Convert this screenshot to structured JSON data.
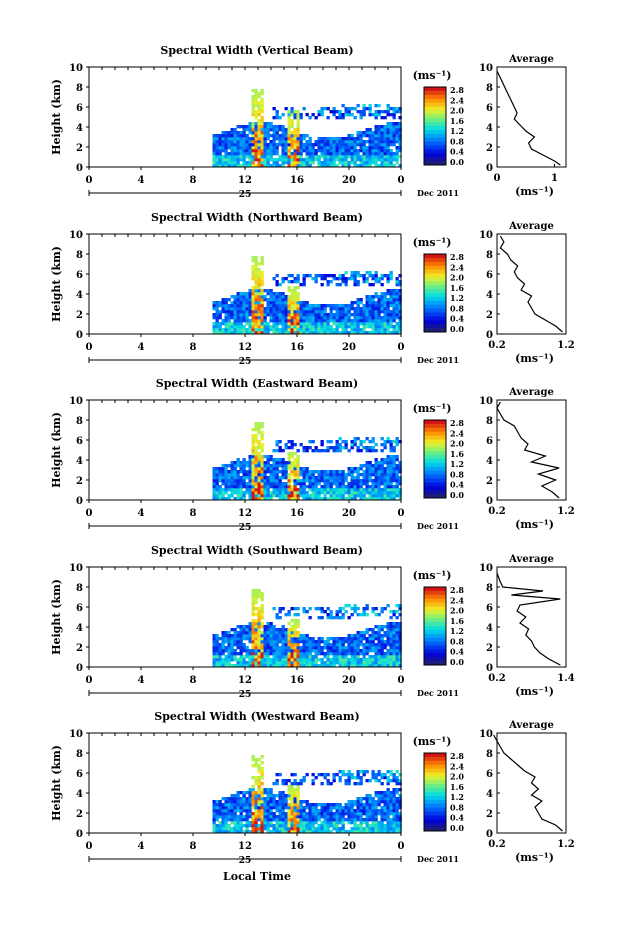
{
  "date_label": "Dec 2011",
  "day_label": "25",
  "xlabel_bottom": "Local Time",
  "height_label": "Height (km)",
  "units_label": "(ms⁻¹)",
  "avg_title": "Average",
  "x_ticks": [
    "0",
    "4",
    "8",
    "12",
    "16",
    "20",
    "0"
  ],
  "y_ticks": [
    "0",
    "2",
    "4",
    "6",
    "8",
    "10"
  ],
  "cbar_ticks": [
    "2.8",
    "2.4",
    "2.0",
    "1.6",
    "1.2",
    "0.8",
    "0.4",
    "0.0"
  ],
  "chart_data": [
    {
      "type": "heatmap",
      "title": "Spectral Width (Vertical Beam)",
      "xlim": [
        0,
        24
      ],
      "ylim": [
        0,
        10
      ],
      "avg_xticks": [
        "0",
        "1"
      ],
      "avg_xlim": [
        0,
        1.2
      ],
      "avg_profile": [
        [
          1.1,
          0.2
        ],
        [
          1.0,
          0.6
        ],
        [
          0.8,
          1.2
        ],
        [
          0.6,
          1.8
        ],
        [
          0.55,
          2.4
        ],
        [
          0.65,
          3.0
        ],
        [
          0.5,
          3.6
        ],
        [
          0.4,
          4.2
        ],
        [
          0.3,
          4.8
        ],
        [
          0.35,
          5.4
        ],
        [
          0.3,
          6.0
        ],
        [
          0.25,
          6.6
        ],
        [
          0.2,
          7.2
        ],
        [
          0.15,
          7.8
        ],
        [
          0.1,
          8.4
        ],
        [
          0.05,
          9.0
        ],
        [
          0.0,
          9.6
        ]
      ]
    },
    {
      "type": "heatmap",
      "title": "Spectral Width (Northward Beam)",
      "xlim": [
        0,
        24
      ],
      "ylim": [
        0,
        10
      ],
      "avg_xticks": [
        "0.2",
        "1.2"
      ],
      "avg_xlim": [
        0.2,
        1.2
      ],
      "avg_profile": [
        [
          1.15,
          0.2
        ],
        [
          1.05,
          0.8
        ],
        [
          0.9,
          1.4
        ],
        [
          0.75,
          2.0
        ],
        [
          0.7,
          2.6
        ],
        [
          0.65,
          3.2
        ],
        [
          0.7,
          3.8
        ],
        [
          0.55,
          4.4
        ],
        [
          0.6,
          5.0
        ],
        [
          0.5,
          5.6
        ],
        [
          0.45,
          6.2
        ],
        [
          0.5,
          6.8
        ],
        [
          0.4,
          7.4
        ],
        [
          0.35,
          8.0
        ],
        [
          0.25,
          8.6
        ],
        [
          0.3,
          9.2
        ],
        [
          0.25,
          9.8
        ]
      ]
    },
    {
      "type": "heatmap",
      "title": "Spectral Width (Eastward Beam)",
      "xlim": [
        0,
        24
      ],
      "ylim": [
        0,
        10
      ],
      "avg_xticks": [
        "0.2",
        "1.2"
      ],
      "avg_xlim": [
        0.2,
        1.2
      ],
      "avg_profile": [
        [
          1.1,
          0.2
        ],
        [
          1.0,
          0.8
        ],
        [
          0.85,
          1.4
        ],
        [
          1.05,
          2.0
        ],
        [
          0.8,
          2.6
        ],
        [
          1.1,
          3.2
        ],
        [
          0.7,
          3.8
        ],
        [
          0.9,
          4.4
        ],
        [
          0.6,
          5.0
        ],
        [
          0.65,
          5.6
        ],
        [
          0.55,
          6.2
        ],
        [
          0.5,
          6.8
        ],
        [
          0.45,
          7.4
        ],
        [
          0.3,
          8.0
        ],
        [
          0.25,
          8.6
        ],
        [
          0.2,
          9.2
        ],
        [
          0.25,
          9.8
        ]
      ]
    },
    {
      "type": "heatmap",
      "title": "Spectral Width (Southward Beam)",
      "xlim": [
        0,
        24
      ],
      "ylim": [
        0,
        10
      ],
      "avg_xticks": [
        "0.2",
        "1.4"
      ],
      "avg_xlim": [
        0.2,
        1.4
      ],
      "avg_profile": [
        [
          1.3,
          0.2
        ],
        [
          1.1,
          0.8
        ],
        [
          0.95,
          1.4
        ],
        [
          0.85,
          2.0
        ],
        [
          0.8,
          2.6
        ],
        [
          0.7,
          3.2
        ],
        [
          0.75,
          3.8
        ],
        [
          0.6,
          4.4
        ],
        [
          0.7,
          5.0
        ],
        [
          0.55,
          5.6
        ],
        [
          0.6,
          6.2
        ],
        [
          1.3,
          6.8
        ],
        [
          0.45,
          7.2
        ],
        [
          1.0,
          7.6
        ],
        [
          0.3,
          8.0
        ],
        [
          0.25,
          8.6
        ],
        [
          0.2,
          9.4
        ]
      ]
    },
    {
      "type": "heatmap",
      "title": "Spectral Width (Westward Beam)",
      "xlim": [
        0,
        24
      ],
      "ylim": [
        0,
        10
      ],
      "avg_xticks": [
        "0.2",
        "1.2"
      ],
      "avg_xlim": [
        0.2,
        1.2
      ],
      "avg_profile": [
        [
          1.15,
          0.2
        ],
        [
          1.05,
          0.8
        ],
        [
          0.85,
          1.4
        ],
        [
          0.8,
          2.0
        ],
        [
          0.75,
          2.6
        ],
        [
          0.85,
          3.2
        ],
        [
          0.7,
          3.8
        ],
        [
          0.8,
          4.4
        ],
        [
          0.7,
          5.0
        ],
        [
          0.75,
          5.6
        ],
        [
          0.6,
          6.2
        ],
        [
          0.5,
          6.8
        ],
        [
          0.4,
          7.4
        ],
        [
          0.3,
          8.0
        ],
        [
          0.25,
          8.6
        ],
        [
          0.2,
          9.2
        ],
        [
          0.15,
          9.8
        ]
      ]
    }
  ]
}
